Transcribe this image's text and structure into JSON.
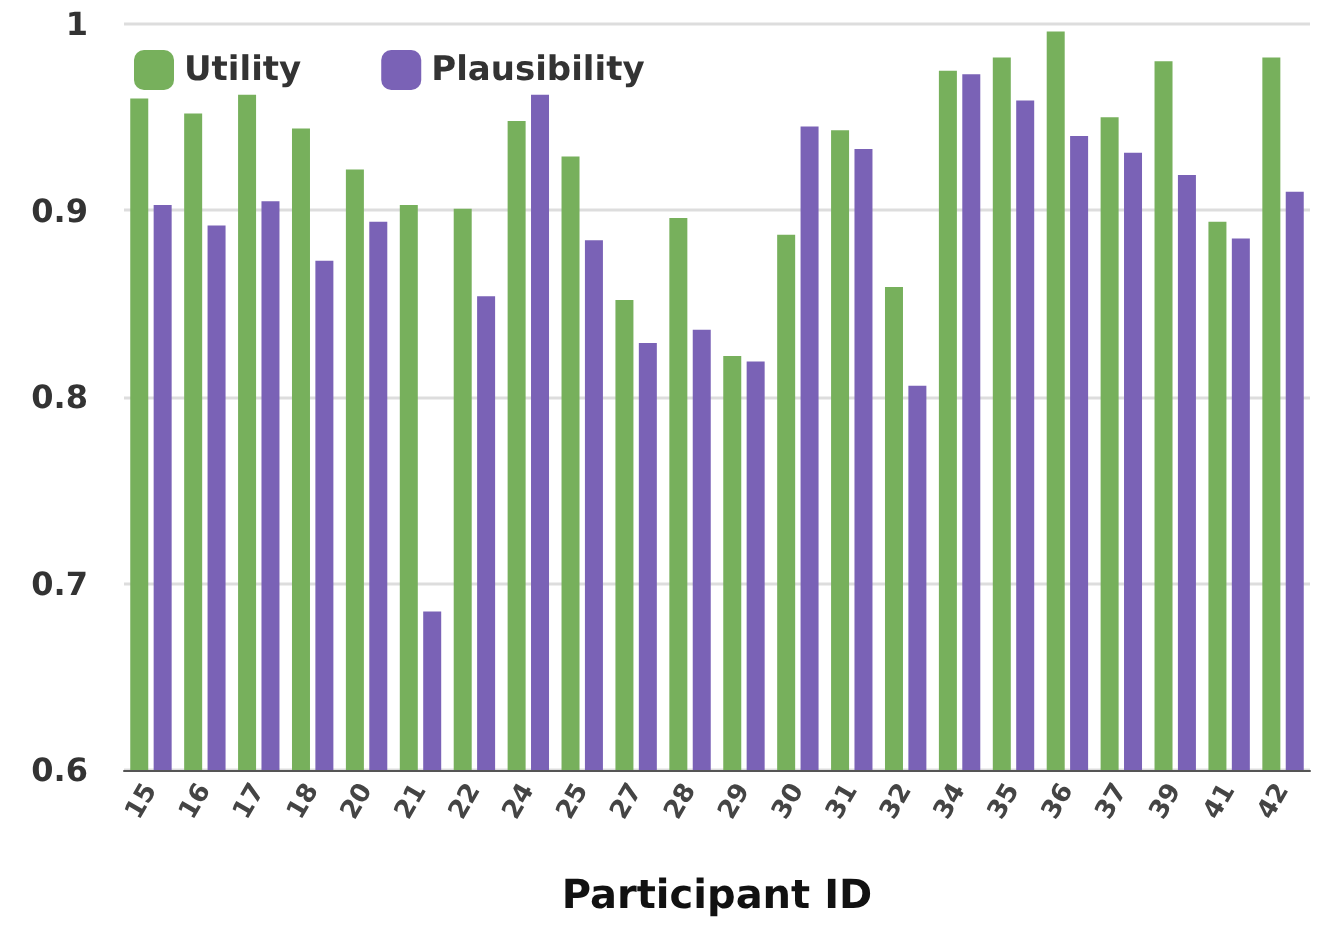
{
  "chart_data": {
    "type": "bar",
    "xlabel": "Participant ID",
    "categories": [
      "15",
      "16",
      "17",
      "18",
      "20",
      "21",
      "22",
      "24",
      "25",
      "27",
      "28",
      "29",
      "30",
      "31",
      "32",
      "34",
      "35",
      "36",
      "37",
      "39",
      "41",
      "42"
    ],
    "series": [
      {
        "name": "Utility",
        "color": "#77b05c",
        "values": [
          0.96,
          0.952,
          0.962,
          0.944,
          0.922,
          0.903,
          0.901,
          0.948,
          0.929,
          0.852,
          0.896,
          0.822,
          0.887,
          0.943,
          0.859,
          0.975,
          0.982,
          0.996,
          0.95,
          0.98,
          0.894,
          0.982
        ]
      },
      {
        "name": "Plausibility",
        "color": "#7a62b6",
        "values": [
          0.903,
          0.892,
          0.905,
          0.873,
          0.894,
          0.685,
          0.854,
          0.962,
          0.884,
          0.829,
          0.836,
          0.819,
          0.945,
          0.933,
          0.806,
          0.973,
          0.959,
          0.94,
          0.931,
          0.919,
          0.885,
          0.91
        ]
      }
    ],
    "ylim": [
      0.6,
      1
    ],
    "yticks": [
      0.6,
      0.7,
      0.8,
      0.9,
      1
    ],
    "grid": "y",
    "legend": "top left"
  }
}
